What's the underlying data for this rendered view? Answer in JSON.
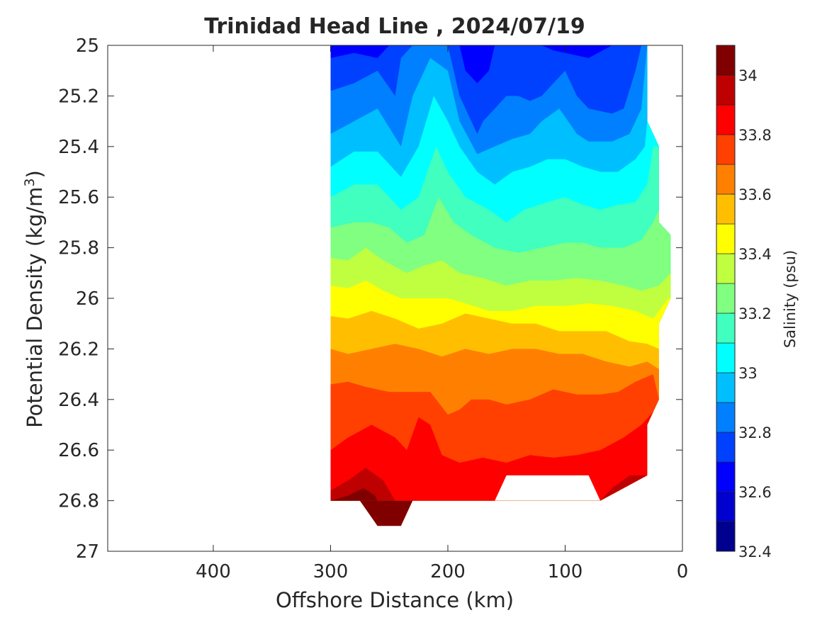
{
  "chart_data": {
    "type": "contour",
    "title": "Trinidad Head Line , 2024/07/19",
    "xlabel": "Offshore Distance (km)",
    "ylabel_main": "Potential Density (kg/m",
    "ylabel_sup": "3",
    "ylabel_close": ")",
    "colorbar_label": "Salinity (psu)",
    "xlim": [
      490,
      0
    ],
    "x_reversed": true,
    "ylim": [
      25,
      27
    ],
    "y_reversed": true,
    "x_ticks": [
      400,
      300,
      200,
      100,
      0
    ],
    "x_tick_labels": [
      "400",
      "300",
      "200",
      "100",
      "0"
    ],
    "y_ticks": [
      25,
      25.2,
      25.4,
      25.6,
      25.8,
      26,
      26.2,
      26.4,
      26.6,
      26.8,
      27
    ],
    "y_tick_labels": [
      "25",
      "25.2",
      "25.4",
      "25.6",
      "25.8",
      "26",
      "26.2",
      "26.4",
      "26.6",
      "26.8",
      "27"
    ],
    "clim": [
      32.4,
      34.1
    ],
    "colorbar_ticks": [
      32.4,
      32.6,
      32.8,
      33,
      33.2,
      33.4,
      33.6,
      33.8,
      34
    ],
    "colorbar_tick_labels": [
      "32.4",
      "32.6",
      "32.8",
      "33",
      "33.2",
      "33.4",
      "33.6",
      "33.8",
      "34"
    ],
    "contour_levels": [
      32.4,
      32.5,
      32.6,
      32.7,
      32.8,
      32.9,
      33.0,
      33.1,
      33.2,
      33.3,
      33.4,
      33.5,
      33.6,
      33.7,
      33.8,
      33.9,
      34.0,
      34.1
    ],
    "level_colors": [
      "#00008f",
      "#0000cf",
      "#0000ff",
      "#0040ff",
      "#0080ff",
      "#00bfff",
      "#00ffff",
      "#40ffbf",
      "#80ff80",
      "#bfff40",
      "#ffff00",
      "#ffbf00",
      "#ff8000",
      "#ff4000",
      "#ff0000",
      "#bf0000",
      "#800000"
    ],
    "section_bounds": {
      "offshore_edge_km": 300,
      "inshore_edge_by_density": [
        [
          25,
          30
        ],
        [
          25.3,
          30
        ],
        [
          25.4,
          20
        ],
        [
          25.7,
          20
        ],
        [
          25.75,
          10
        ],
        [
          26.0,
          10
        ],
        [
          26.1,
          20
        ],
        [
          26.4,
          20
        ],
        [
          26.5,
          30
        ],
        [
          26.7,
          30
        ],
        [
          26.8,
          70
        ]
      ]
    },
    "isohalines": [
      {
        "salinity": 32.7,
        "points": [
          [
            300,
            25.05
          ],
          [
            280,
            25.03
          ],
          [
            260,
            25.05
          ],
          [
            250,
            25.0
          ],
          [
            190,
            25.0
          ],
          [
            185,
            25.1
          ],
          [
            175,
            25.15
          ],
          [
            165,
            25.1
          ],
          [
            160,
            25.0
          ],
          [
            120,
            25.0
          ],
          [
            110,
            25.02
          ],
          [
            80,
            25.05
          ],
          [
            60,
            25.0
          ]
        ]
      },
      {
        "salinity": 32.8,
        "points": [
          [
            300,
            25.18
          ],
          [
            280,
            25.15
          ],
          [
            260,
            25.1
          ],
          [
            245,
            25.2
          ],
          [
            240,
            25.05
          ],
          [
            230,
            25.0
          ],
          [
            200,
            25.0
          ],
          [
            190,
            25.2
          ],
          [
            180,
            25.3
          ],
          [
            175,
            25.35
          ],
          [
            170,
            25.3
          ],
          [
            160,
            25.25
          ],
          [
            150,
            25.2
          ],
          [
            140,
            25.2
          ],
          [
            130,
            25.22
          ],
          [
            120,
            25.2
          ],
          [
            110,
            25.15
          ],
          [
            100,
            25.1
          ],
          [
            90,
            25.2
          ],
          [
            80,
            25.25
          ],
          [
            60,
            25.27
          ],
          [
            50,
            25.25
          ],
          [
            40,
            25.1
          ],
          [
            35,
            25.0
          ]
        ]
      },
      {
        "salinity": 32.9,
        "points": [
          [
            300,
            25.35
          ],
          [
            280,
            25.3
          ],
          [
            260,
            25.25
          ],
          [
            240,
            25.4
          ],
          [
            230,
            25.2
          ],
          [
            215,
            25.05
          ],
          [
            200,
            25.1
          ],
          [
            190,
            25.3
          ],
          [
            175,
            25.43
          ],
          [
            160,
            25.4
          ],
          [
            145,
            25.37
          ],
          [
            130,
            25.35
          ],
          [
            120,
            25.3
          ],
          [
            105,
            25.25
          ],
          [
            90,
            25.35
          ],
          [
            80,
            25.38
          ],
          [
            60,
            25.38
          ],
          [
            45,
            25.35
          ],
          [
            35,
            25.25
          ],
          [
            30,
            25.0
          ]
        ]
      },
      {
        "salinity": 33.0,
        "points": [
          [
            300,
            25.48
          ],
          [
            280,
            25.42
          ],
          [
            260,
            25.42
          ],
          [
            240,
            25.52
          ],
          [
            225,
            25.4
          ],
          [
            212,
            25.2
          ],
          [
            200,
            25.3
          ],
          [
            190,
            25.4
          ],
          [
            175,
            25.5
          ],
          [
            160,
            25.55
          ],
          [
            145,
            25.5
          ],
          [
            130,
            25.48
          ],
          [
            115,
            25.45
          ],
          [
            100,
            25.45
          ],
          [
            85,
            25.48
          ],
          [
            70,
            25.5
          ],
          [
            55,
            25.5
          ],
          [
            40,
            25.45
          ],
          [
            32,
            25.4
          ],
          [
            28,
            25.2
          ]
        ]
      },
      {
        "salinity": 33.1,
        "points": [
          [
            300,
            25.6
          ],
          [
            280,
            25.55
          ],
          [
            260,
            25.55
          ],
          [
            240,
            25.65
          ],
          [
            225,
            25.6
          ],
          [
            210,
            25.4
          ],
          [
            200,
            25.5
          ],
          [
            185,
            25.6
          ],
          [
            165,
            25.65
          ],
          [
            150,
            25.7
          ],
          [
            135,
            25.65
          ],
          [
            115,
            25.62
          ],
          [
            100,
            25.6
          ],
          [
            85,
            25.63
          ],
          [
            70,
            25.65
          ],
          [
            55,
            25.63
          ],
          [
            40,
            25.62
          ],
          [
            30,
            25.55
          ],
          [
            25,
            25.4
          ]
        ]
      },
      {
        "salinity": 33.2,
        "points": [
          [
            300,
            25.72
          ],
          [
            280,
            25.7
          ],
          [
            265,
            25.7
          ],
          [
            250,
            25.72
          ],
          [
            235,
            25.78
          ],
          [
            220,
            25.75
          ],
          [
            208,
            25.6
          ],
          [
            195,
            25.7
          ],
          [
            180,
            25.75
          ],
          [
            160,
            25.8
          ],
          [
            140,
            25.82
          ],
          [
            120,
            25.8
          ],
          [
            100,
            25.78
          ],
          [
            85,
            25.78
          ],
          [
            70,
            25.8
          ],
          [
            50,
            25.8
          ],
          [
            35,
            25.77
          ],
          [
            25,
            25.7
          ],
          [
            20,
            25.65
          ]
        ]
      },
      {
        "salinity": 33.3,
        "points": [
          [
            300,
            25.84
          ],
          [
            285,
            25.85
          ],
          [
            270,
            25.8
          ],
          [
            255,
            25.85
          ],
          [
            235,
            25.9
          ],
          [
            220,
            25.87
          ],
          [
            205,
            25.85
          ],
          [
            190,
            25.9
          ],
          [
            170,
            25.92
          ],
          [
            150,
            25.95
          ],
          [
            130,
            25.93
          ],
          [
            110,
            25.93
          ],
          [
            90,
            25.92
          ],
          [
            70,
            25.93
          ],
          [
            50,
            25.95
          ],
          [
            35,
            25.97
          ],
          [
            20,
            25.95
          ],
          [
            10,
            25.9
          ]
        ]
      },
      {
        "salinity": 33.4,
        "points": [
          [
            300,
            25.95
          ],
          [
            285,
            25.96
          ],
          [
            270,
            25.93
          ],
          [
            255,
            25.97
          ],
          [
            240,
            26.0
          ],
          [
            220,
            26.0
          ],
          [
            200,
            26.0
          ],
          [
            185,
            26.02
          ],
          [
            165,
            26.05
          ],
          [
            145,
            26.05
          ],
          [
            125,
            26.03
          ],
          [
            100,
            26.03
          ],
          [
            80,
            26.02
          ],
          [
            60,
            26.03
          ],
          [
            40,
            26.05
          ],
          [
            25,
            26.08
          ],
          [
            12,
            26.0
          ]
        ]
      },
      {
        "salinity": 33.5,
        "points": [
          [
            300,
            26.07
          ],
          [
            285,
            26.08
          ],
          [
            265,
            26.05
          ],
          [
            245,
            26.08
          ],
          [
            225,
            26.12
          ],
          [
            205,
            26.1
          ],
          [
            185,
            26.06
          ],
          [
            165,
            26.08
          ],
          [
            145,
            26.1
          ],
          [
            125,
            26.1
          ],
          [
            105,
            26.13
          ],
          [
            85,
            26.13
          ],
          [
            65,
            26.13
          ],
          [
            45,
            26.17
          ],
          [
            30,
            26.18
          ],
          [
            20,
            26.2
          ]
        ]
      },
      {
        "salinity": 33.6,
        "points": [
          [
            300,
            26.2
          ],
          [
            285,
            26.22
          ],
          [
            265,
            26.2
          ],
          [
            245,
            26.18
          ],
          [
            225,
            26.2
          ],
          [
            205,
            26.23
          ],
          [
            185,
            26.2
          ],
          [
            165,
            26.22
          ],
          [
            145,
            26.2
          ],
          [
            125,
            26.2
          ],
          [
            105,
            26.22
          ],
          [
            85,
            26.22
          ],
          [
            65,
            26.25
          ],
          [
            45,
            26.27
          ],
          [
            30,
            26.25
          ],
          [
            20,
            26.28
          ]
        ]
      },
      {
        "salinity": 33.7,
        "points": [
          [
            300,
            26.34
          ],
          [
            285,
            26.33
          ],
          [
            270,
            26.35
          ],
          [
            250,
            26.37
          ],
          [
            230,
            26.37
          ],
          [
            215,
            26.37
          ],
          [
            200,
            26.46
          ],
          [
            190,
            26.44
          ],
          [
            180,
            26.4
          ],
          [
            165,
            26.4
          ],
          [
            150,
            26.42
          ],
          [
            130,
            26.4
          ],
          [
            110,
            26.36
          ],
          [
            90,
            26.38
          ],
          [
            70,
            26.38
          ],
          [
            55,
            26.37
          ],
          [
            40,
            26.33
          ],
          [
            25,
            26.3
          ],
          [
            20,
            26.4
          ]
        ]
      },
      {
        "salinity": 33.8,
        "points": [
          [
            300,
            26.6
          ],
          [
            285,
            26.55
          ],
          [
            265,
            26.5
          ],
          [
            245,
            26.55
          ],
          [
            235,
            26.6
          ],
          [
            225,
            26.47
          ],
          [
            215,
            26.5
          ],
          [
            205,
            26.62
          ],
          [
            190,
            26.65
          ],
          [
            170,
            26.63
          ],
          [
            150,
            26.65
          ],
          [
            130,
            26.62
          ],
          [
            110,
            26.63
          ],
          [
            90,
            26.62
          ],
          [
            70,
            26.6
          ],
          [
            50,
            26.55
          ],
          [
            35,
            26.5
          ],
          [
            25,
            26.45
          ]
        ]
      },
      {
        "salinity": 33.9,
        "points": [
          [
            300,
            26.76
          ],
          [
            285,
            26.72
          ],
          [
            270,
            26.67
          ],
          [
            255,
            26.72
          ],
          [
            245,
            26.8
          ],
          [
            235,
            26.8
          ],
          [
            70,
            26.8
          ],
          [
            60,
            26.75
          ],
          [
            45,
            26.7
          ]
        ]
      },
      {
        "salinity": 34.0,
        "points": [
          [
            300,
            26.8
          ],
          [
            285,
            26.78
          ],
          [
            272,
            26.75
          ],
          [
            262,
            26.78
          ],
          [
            255,
            26.85
          ],
          [
            248,
            26.88
          ],
          [
            240,
            26.85
          ]
        ]
      }
    ]
  }
}
